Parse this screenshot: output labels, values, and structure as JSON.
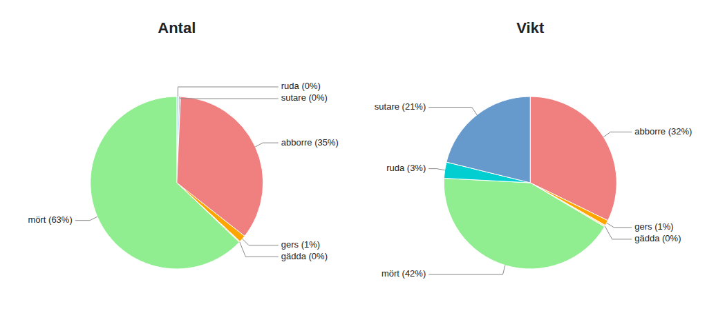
{
  "chart_data": [
    {
      "type": "pie",
      "title": "Antal",
      "categories": [
        "ruda (0%)",
        "sutare (0%)",
        "abborre (35%)",
        "gers (1%)",
        "gädda (0%)",
        "mört (63%)"
      ],
      "values": [
        0.4,
        0.3,
        35,
        1.3,
        0.2,
        63
      ],
      "colors": [
        "#ADD8E6",
        "#87CEEB",
        "#F08080",
        "#FFA500",
        "#FFE4B5",
        "#90EE90"
      ]
    },
    {
      "type": "pie",
      "title": "Vikt",
      "categories": [
        "abborre (32%)",
        "gers (1%)",
        "gädda (0%)",
        "mört (42%)",
        "ruda (3%)",
        "sutare (21%)"
      ],
      "values": [
        32,
        1.0,
        0.3,
        42,
        3.0,
        21
      ],
      "colors": [
        "#F08080",
        "#FFA500",
        "#FFE4B5",
        "#90EE90",
        "#00CED1",
        "#6699CC"
      ]
    }
  ]
}
